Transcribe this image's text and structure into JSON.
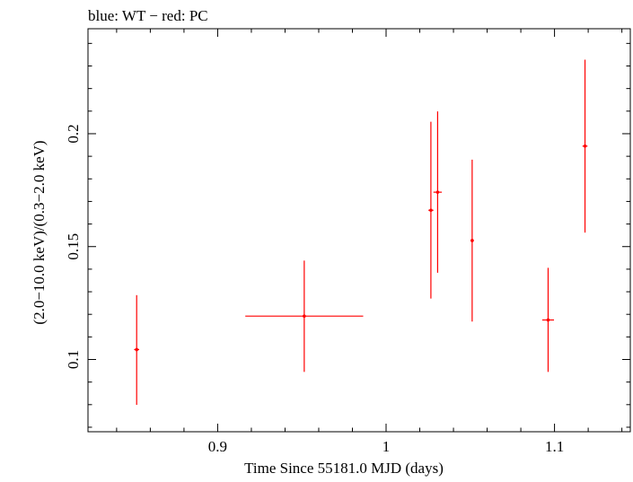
{
  "chart_data": {
    "type": "scatter",
    "title": "blue: WT − red: PC",
    "xlabel": "Time Since 55181.0 MJD (days)",
    "ylabel": "(2.0−10.0 keV)/(0.3−2.0 keV)",
    "xlim": [
      0.823,
      1.145
    ],
    "ylim": [
      0.068,
      0.2465
    ],
    "x_ticks": [
      {
        "value": 0.9,
        "label": "0.9"
      },
      {
        "value": 1.0,
        "label": "1"
      },
      {
        "value": 1.1,
        "label": "1.1"
      }
    ],
    "y_ticks": [
      {
        "value": 0.1,
        "label": "0.1"
      },
      {
        "value": 0.15,
        "label": "0.15"
      },
      {
        "value": 0.2,
        "label": "0.2"
      }
    ],
    "grid": false,
    "series": [
      {
        "color": "#ff0000",
        "points": [
          {
            "x": 0.8519,
            "y": 0.1044,
            "xerr": 0.0015,
            "ylo": 0.0799,
            "yhi": 0.1285
          },
          {
            "x": 0.9514,
            "y": 0.1192,
            "xerr": 0.035,
            "ylo": 0.0945,
            "yhi": 0.1438
          },
          {
            "x": 1.0266,
            "y": 0.1661,
            "xerr": 0.0015,
            "ylo": 0.127,
            "yhi": 0.2053
          },
          {
            "x": 1.0306,
            "y": 0.1741,
            "xerr": 0.0025,
            "ylo": 0.1384,
            "yhi": 0.2099
          },
          {
            "x": 1.0511,
            "y": 0.1527,
            "xerr": 0.001,
            "ylo": 0.1168,
            "yhi": 0.1885
          },
          {
            "x": 1.0962,
            "y": 0.1175,
            "xerr": 0.0035,
            "ylo": 0.0945,
            "yhi": 0.1406
          },
          {
            "x": 1.1181,
            "y": 0.1945,
            "xerr": 0.0015,
            "ylo": 0.1562,
            "yhi": 0.2328
          }
        ]
      }
    ]
  }
}
